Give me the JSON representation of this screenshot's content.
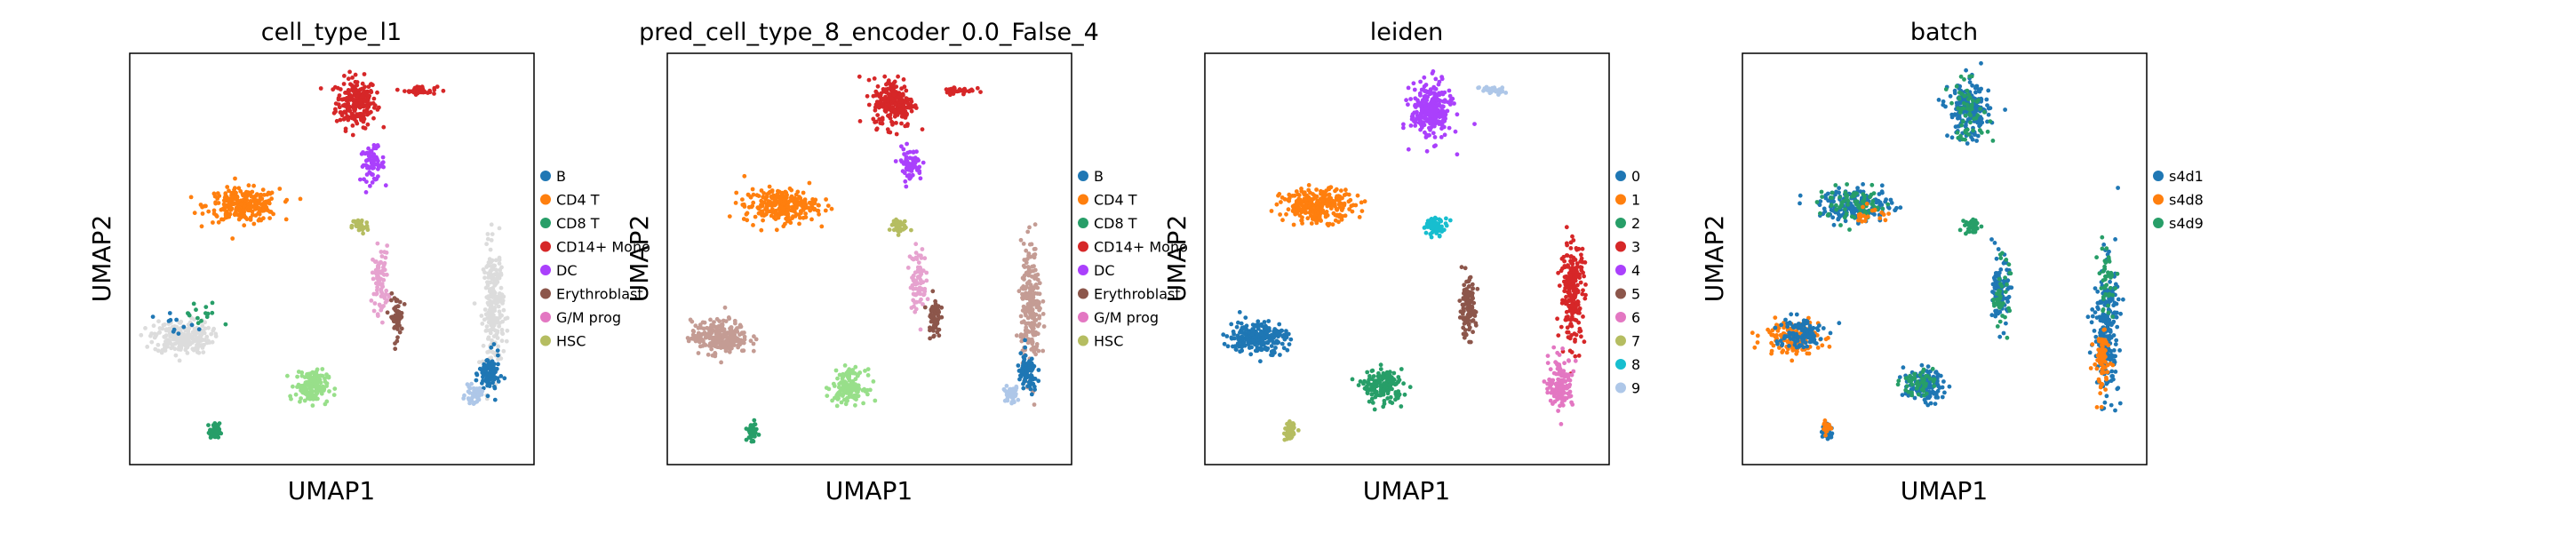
{
  "figure": {
    "xlabel": "UMAP1",
    "ylabel": "UMAP2"
  },
  "chart_data": [
    {
      "type": "scatter",
      "title": "cell_type_l1",
      "xlabel": "UMAP1",
      "ylabel": "UMAP2",
      "grid": false,
      "legend_position": "right",
      "legend": [
        {
          "label": "B",
          "color": "#1f77b4"
        },
        {
          "label": "CD4 T",
          "color": "#ff7f0e"
        },
        {
          "label": "CD8 T",
          "color": "#279e68"
        },
        {
          "label": "CD14+ Mono",
          "color": "#d62728"
        },
        {
          "label": "DC",
          "color": "#aa40fc"
        },
        {
          "label": "Erythroblast",
          "color": "#8c564b"
        },
        {
          "label": "G/M prog",
          "color": "#e377c2"
        },
        {
          "label": "HSC",
          "color": "#b5bd61"
        }
      ],
      "clusters": [
        {
          "color": "#d62728",
          "center": [
            0.56,
            0.88
          ],
          "spread": [
            0.05,
            0.06
          ],
          "count": 220
        },
        {
          "color": "#d62728",
          "center": [
            0.72,
            0.91
          ],
          "spread": [
            0.04,
            0.01
          ],
          "count": 40
        },
        {
          "color": "#aa40fc",
          "center": [
            0.6,
            0.73
          ],
          "spread": [
            0.03,
            0.04
          ],
          "count": 70
        },
        {
          "color": "#ff7f0e",
          "center": [
            0.28,
            0.63
          ],
          "spread": [
            0.09,
            0.04
          ],
          "count": 260
        },
        {
          "color": "#b5bd61",
          "center": [
            0.57,
            0.58
          ],
          "spread": [
            0.02,
            0.02
          ],
          "count": 40
        },
        {
          "color": "#dcdcdc",
          "center": [
            0.13,
            0.31
          ],
          "spread": [
            0.07,
            0.04
          ],
          "count": 240
        },
        {
          "color": "#1f77b4",
          "center": [
            0.12,
            0.33
          ],
          "spread": [
            0.06,
            0.04
          ],
          "count": 12
        },
        {
          "color": "#279e68",
          "center": [
            0.18,
            0.36
          ],
          "spread": [
            0.05,
            0.04
          ],
          "count": 14
        },
        {
          "color": "#e6a2cf",
          "center": [
            0.62,
            0.45
          ],
          "spread": [
            0.02,
            0.08
          ],
          "count": 80
        },
        {
          "color": "#8c564b",
          "center": [
            0.66,
            0.36
          ],
          "spread": [
            0.015,
            0.05
          ],
          "count": 60
        },
        {
          "color": "#dcdcdc",
          "center": [
            0.9,
            0.38
          ],
          "spread": [
            0.025,
            0.15
          ],
          "count": 230
        },
        {
          "color": "#1f77b4",
          "center": [
            0.89,
            0.22
          ],
          "spread": [
            0.025,
            0.05
          ],
          "count": 90
        },
        {
          "color": "#aec7e8",
          "center": [
            0.85,
            0.17
          ],
          "spread": [
            0.02,
            0.02
          ],
          "count": 40
        },
        {
          "color": "#98df8a",
          "center": [
            0.45,
            0.19
          ],
          "spread": [
            0.04,
            0.04
          ],
          "count": 150
        },
        {
          "color": "#279e68",
          "center": [
            0.21,
            0.08
          ],
          "spread": [
            0.012,
            0.02
          ],
          "count": 60
        }
      ]
    },
    {
      "type": "scatter",
      "title": "pred_cell_type_8_encoder_0.0_False_4",
      "xlabel": "UMAP1",
      "ylabel": "UMAP2",
      "grid": false,
      "legend_position": "right",
      "legend": [
        {
          "label": "B",
          "color": "#1f77b4"
        },
        {
          "label": "CD4 T",
          "color": "#ff7f0e"
        },
        {
          "label": "CD8 T",
          "color": "#279e68"
        },
        {
          "label": "CD14+ Mono",
          "color": "#d62728"
        },
        {
          "label": "DC",
          "color": "#aa40fc"
        },
        {
          "label": "Erythroblast",
          "color": "#8c564b"
        },
        {
          "label": "G/M prog",
          "color": "#e377c2"
        },
        {
          "label": "HSC",
          "color": "#b5bd61"
        }
      ],
      "clusters": [
        {
          "color": "#d62728",
          "center": [
            0.56,
            0.88
          ],
          "spread": [
            0.05,
            0.06
          ],
          "count": 220
        },
        {
          "color": "#d62728",
          "center": [
            0.72,
            0.91
          ],
          "spread": [
            0.04,
            0.01
          ],
          "count": 40
        },
        {
          "color": "#aa40fc",
          "center": [
            0.6,
            0.73
          ],
          "spread": [
            0.03,
            0.04
          ],
          "count": 70
        },
        {
          "color": "#ff7f0e",
          "center": [
            0.28,
            0.63
          ],
          "spread": [
            0.09,
            0.04
          ],
          "count": 260
        },
        {
          "color": "#b5bd61",
          "center": [
            0.57,
            0.58
          ],
          "spread": [
            0.02,
            0.02
          ],
          "count": 40
        },
        {
          "color": "#c49c94",
          "center": [
            0.13,
            0.31
          ],
          "spread": [
            0.07,
            0.04
          ],
          "count": 240
        },
        {
          "color": "#e6a2cf",
          "center": [
            0.62,
            0.45
          ],
          "spread": [
            0.02,
            0.08
          ],
          "count": 80
        },
        {
          "color": "#8c564b",
          "center": [
            0.66,
            0.36
          ],
          "spread": [
            0.015,
            0.05
          ],
          "count": 60
        },
        {
          "color": "#c49c94",
          "center": [
            0.9,
            0.38
          ],
          "spread": [
            0.025,
            0.15
          ],
          "count": 230
        },
        {
          "color": "#1f77b4",
          "center": [
            0.89,
            0.22
          ],
          "spread": [
            0.025,
            0.05
          ],
          "count": 90
        },
        {
          "color": "#aec7e8",
          "center": [
            0.85,
            0.17
          ],
          "spread": [
            0.02,
            0.02
          ],
          "count": 40
        },
        {
          "color": "#98df8a",
          "center": [
            0.45,
            0.19
          ],
          "spread": [
            0.04,
            0.04
          ],
          "count": 150
        },
        {
          "color": "#279e68",
          "center": [
            0.21,
            0.08
          ],
          "spread": [
            0.012,
            0.02
          ],
          "count": 60
        }
      ]
    },
    {
      "type": "scatter",
      "title": "leiden",
      "xlabel": "UMAP1",
      "ylabel": "UMAP2",
      "grid": false,
      "legend_position": "right",
      "legend": [
        {
          "label": "0",
          "color": "#1f77b4"
        },
        {
          "label": "1",
          "color": "#ff7f0e"
        },
        {
          "label": "2",
          "color": "#279e68"
        },
        {
          "label": "3",
          "color": "#d62728"
        },
        {
          "label": "4",
          "color": "#aa40fc"
        },
        {
          "label": "5",
          "color": "#8c564b"
        },
        {
          "label": "6",
          "color": "#e377c2"
        },
        {
          "label": "7",
          "color": "#b5bd61"
        },
        {
          "label": "8",
          "color": "#17becf"
        },
        {
          "label": "9",
          "color": "#aec7e8"
        }
      ],
      "clusters": [
        {
          "color": "#aa40fc",
          "center": [
            0.56,
            0.86
          ],
          "spread": [
            0.05,
            0.07
          ],
          "count": 260
        },
        {
          "color": "#aec7e8",
          "center": [
            0.71,
            0.91
          ],
          "spread": [
            0.03,
            0.01
          ],
          "count": 40
        },
        {
          "color": "#ff7f0e",
          "center": [
            0.28,
            0.63
          ],
          "spread": [
            0.09,
            0.04
          ],
          "count": 260
        },
        {
          "color": "#17becf",
          "center": [
            0.57,
            0.58
          ],
          "spread": [
            0.03,
            0.02
          ],
          "count": 60
        },
        {
          "color": "#1f77b4",
          "center": [
            0.13,
            0.31
          ],
          "spread": [
            0.07,
            0.04
          ],
          "count": 240
        },
        {
          "color": "#8c564b",
          "center": [
            0.65,
            0.38
          ],
          "spread": [
            0.02,
            0.07
          ],
          "count": 110
        },
        {
          "color": "#d62728",
          "center": [
            0.91,
            0.42
          ],
          "spread": [
            0.03,
            0.12
          ],
          "count": 220
        },
        {
          "color": "#e377c2",
          "center": [
            0.88,
            0.2
          ],
          "spread": [
            0.03,
            0.06
          ],
          "count": 140
        },
        {
          "color": "#279e68",
          "center": [
            0.44,
            0.19
          ],
          "spread": [
            0.05,
            0.04
          ],
          "count": 160
        },
        {
          "color": "#b5bd61",
          "center": [
            0.21,
            0.08
          ],
          "spread": [
            0.012,
            0.02
          ],
          "count": 60
        }
      ]
    },
    {
      "type": "scatter",
      "title": "batch",
      "xlabel": "UMAP1",
      "ylabel": "UMAP2",
      "grid": false,
      "legend_position": "right",
      "legend": [
        {
          "label": "s4d1",
          "color": "#1f77b4"
        },
        {
          "label": "s4d8",
          "color": "#ff7f0e"
        },
        {
          "label": "s4d9",
          "color": "#279e68"
        }
      ],
      "clusters": [
        {
          "color": "#1f77b4",
          "center": [
            0.56,
            0.86
          ],
          "spread": [
            0.05,
            0.07
          ],
          "count": 200
        },
        {
          "color": "#279e68",
          "center": [
            0.56,
            0.86
          ],
          "spread": [
            0.05,
            0.07
          ],
          "count": 60
        },
        {
          "color": "#1f77b4",
          "center": [
            0.28,
            0.63
          ],
          "spread": [
            0.09,
            0.04
          ],
          "count": 180
        },
        {
          "color": "#279e68",
          "center": [
            0.28,
            0.63
          ],
          "spread": [
            0.09,
            0.04
          ],
          "count": 80
        },
        {
          "color": "#ff7f0e",
          "center": [
            0.31,
            0.61
          ],
          "spread": [
            0.05,
            0.02
          ],
          "count": 20
        },
        {
          "color": "#279e68",
          "center": [
            0.57,
            0.58
          ],
          "spread": [
            0.02,
            0.02
          ],
          "count": 40
        },
        {
          "color": "#ff7f0e",
          "center": [
            0.12,
            0.31
          ],
          "spread": [
            0.07,
            0.04
          ],
          "count": 140
        },
        {
          "color": "#1f77b4",
          "center": [
            0.14,
            0.32
          ],
          "spread": [
            0.06,
            0.04
          ],
          "count": 110
        },
        {
          "color": "#1f77b4",
          "center": [
            0.64,
            0.42
          ],
          "spread": [
            0.02,
            0.08
          ],
          "count": 110
        },
        {
          "color": "#279e68",
          "center": [
            0.64,
            0.42
          ],
          "spread": [
            0.02,
            0.08
          ],
          "count": 40
        },
        {
          "color": "#1f77b4",
          "center": [
            0.9,
            0.33
          ],
          "spread": [
            0.03,
            0.16
          ],
          "count": 240
        },
        {
          "color": "#ff7f0e",
          "center": [
            0.89,
            0.25
          ],
          "spread": [
            0.02,
            0.08
          ],
          "count": 70
        },
        {
          "color": "#279e68",
          "center": [
            0.9,
            0.45
          ],
          "spread": [
            0.02,
            0.08
          ],
          "count": 40
        },
        {
          "color": "#1f77b4",
          "center": [
            0.45,
            0.19
          ],
          "spread": [
            0.05,
            0.04
          ],
          "count": 120
        },
        {
          "color": "#279e68",
          "center": [
            0.43,
            0.2
          ],
          "spread": [
            0.04,
            0.03
          ],
          "count": 50
        },
        {
          "color": "#1f77b4",
          "center": [
            0.21,
            0.08
          ],
          "spread": [
            0.012,
            0.02
          ],
          "count": 40
        },
        {
          "color": "#ff7f0e",
          "center": [
            0.21,
            0.09
          ],
          "spread": [
            0.01,
            0.015
          ],
          "count": 20
        }
      ]
    }
  ]
}
